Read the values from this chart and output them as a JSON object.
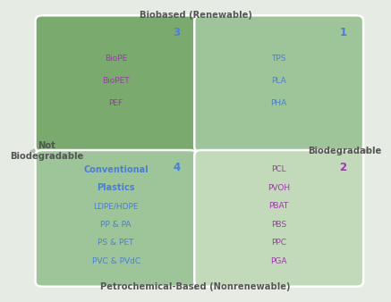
{
  "bg_color": "#e6ece4",
  "quadrants": [
    {
      "num": "3",
      "num_color": "#4a7fd4",
      "title": null,
      "title_color": null,
      "lines": [
        "BioPE",
        "BioPET",
        "PEF"
      ],
      "text_color": "#9b3aaa",
      "box_color": "#7aaa6e",
      "pos": "top-left"
    },
    {
      "num": "1",
      "num_color": "#4a7fd4",
      "title": null,
      "title_color": null,
      "lines": [
        "TPS",
        "PLA",
        "PHA"
      ],
      "text_color": "#4a7fd4",
      "box_color": "#9ec49a",
      "pos": "top-right"
    },
    {
      "num": "4",
      "num_color": "#4a7fd4",
      "title": "Conventional\nPlastics",
      "title_color": "#4a7fd4",
      "lines": [
        "LDPE/HDPE",
        "PP & PA",
        "PS & PET",
        "PVC & PVdC"
      ],
      "text_color": "#4a7fd4",
      "box_color": "#9ec49a",
      "pos": "bottom-left"
    },
    {
      "num": "2",
      "num_color": "#9b3aaa",
      "title": null,
      "title_color": null,
      "lines": [
        "PCL",
        "PVOH",
        "PBAT",
        "PBS",
        "PPC",
        "PGA"
      ],
      "text_color": "#9b3aaa",
      "box_color": "#c2d9ba",
      "pos": "bottom-right"
    }
  ],
  "top_label": "Biobased (Renewable)",
  "bottom_label": "Petrochemical-Based (Nonrenewable)",
  "left_label": "Not\nBiodegradable",
  "right_label": "Biodegradable",
  "label_color": "#555555",
  "arrow_color": "#b0b8b0"
}
